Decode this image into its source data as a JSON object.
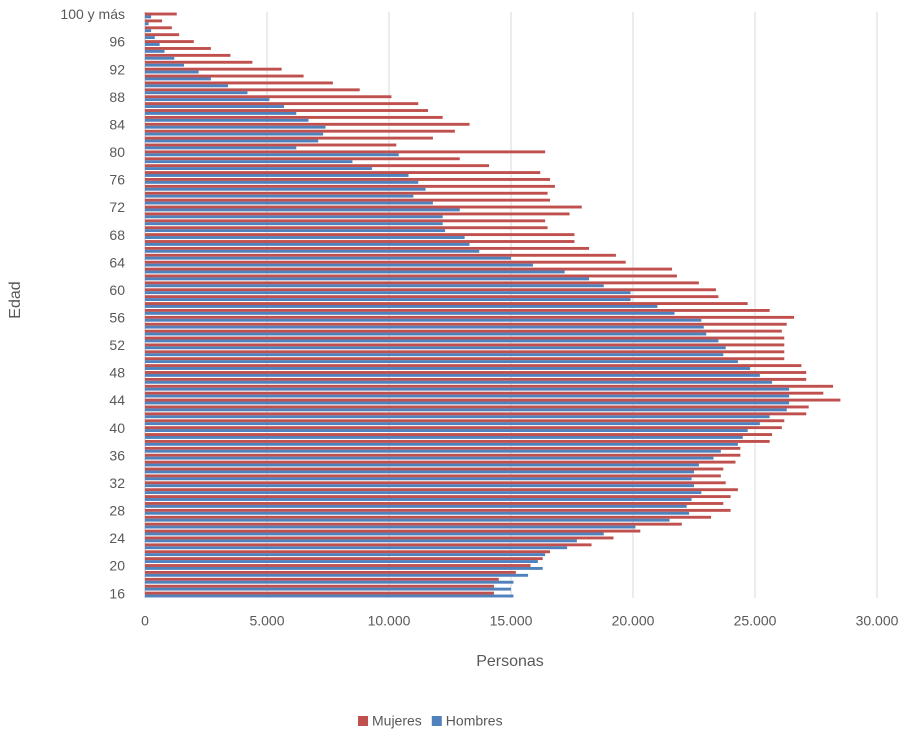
{
  "chart_data": {
    "type": "bar",
    "orientation": "horizontal",
    "x_label": "Personas",
    "y_label": "Edad",
    "categories": [
      "16",
      null,
      null,
      null,
      "20",
      null,
      null,
      null,
      "24",
      null,
      null,
      null,
      "28",
      null,
      null,
      null,
      "32",
      null,
      null,
      null,
      "36",
      null,
      null,
      null,
      "40",
      null,
      null,
      null,
      "44",
      null,
      null,
      null,
      "48",
      null,
      null,
      null,
      "52",
      null,
      null,
      null,
      "56",
      null,
      null,
      null,
      "60",
      null,
      null,
      null,
      "64",
      null,
      null,
      null,
      "68",
      null,
      null,
      null,
      "72",
      null,
      null,
      null,
      "76",
      null,
      null,
      null,
      "80",
      null,
      null,
      null,
      "84",
      null,
      null,
      null,
      "88",
      null,
      null,
      null,
      "92",
      null,
      null,
      null,
      "96",
      null,
      null,
      null,
      "100 y más"
    ],
    "series": [
      {
        "name": "Mujeres",
        "color": "#c0504d",
        "values": [
          14300,
          14300,
          14500,
          15200,
          15800,
          16300,
          16600,
          18300,
          19200,
          20300,
          22000,
          23200,
          24000,
          23700,
          24000,
          24300,
          23800,
          23600,
          23700,
          24200,
          24400,
          24400,
          25600,
          25700,
          26100,
          26200,
          27100,
          27200,
          28500,
          27800,
          28200,
          27100,
          27100,
          26900,
          26200,
          26200,
          26200,
          26200,
          26100,
          26300,
          26600,
          25600,
          24700,
          23500,
          23400,
          22700,
          21800,
          21600,
          19700,
          19300,
          18200,
          17600,
          17600,
          16500,
          16400,
          17400,
          17900,
          16600,
          16500,
          16800,
          16600,
          16200,
          14100,
          12900,
          16400,
          10300,
          11800,
          12700,
          13300,
          12200,
          11600,
          11200,
          10100,
          8800,
          7700,
          6500,
          5600,
          4400,
          3500,
          2700,
          2000,
          1400,
          1100,
          700,
          1300
        ]
      },
      {
        "name": "Hombres",
        "color": "#4f81bd",
        "values": [
          15100,
          15000,
          15100,
          15700,
          16300,
          16100,
          16400,
          17300,
          17700,
          18800,
          20100,
          21500,
          22300,
          22200,
          22400,
          22800,
          22500,
          22400,
          22500,
          22700,
          23300,
          23600,
          24300,
          24500,
          24700,
          25200,
          25600,
          26300,
          26400,
          26400,
          26400,
          25700,
          25200,
          24800,
          24300,
          23700,
          23800,
          23500,
          23000,
          22900,
          22800,
          21700,
          21000,
          19900,
          19900,
          18800,
          18200,
          17200,
          15900,
          15000,
          13700,
          13300,
          13100,
          12300,
          12200,
          12200,
          12900,
          11800,
          11000,
          11500,
          11200,
          10800,
          9300,
          8500,
          10400,
          6200,
          7100,
          7300,
          7400,
          6700,
          6200,
          5700,
          5100,
          4200,
          3400,
          2700,
          2200,
          1600,
          1200,
          800,
          600,
          400,
          250,
          150,
          250
        ]
      }
    ],
    "xlim": [
      0,
      30000
    ],
    "xticks": [
      0,
      {
        "value": 5000,
        "label": "5.000"
      },
      {
        "value": 10000,
        "label": "10.000"
      },
      {
        "value": 15000,
        "label": "15.000"
      },
      {
        "value": 20000,
        "label": "20.000"
      },
      {
        "value": 25000,
        "label": "25.000"
      },
      {
        "value": 30000,
        "label": "30.000"
      }
    ],
    "grid": true,
    "legend": "bottom"
  }
}
